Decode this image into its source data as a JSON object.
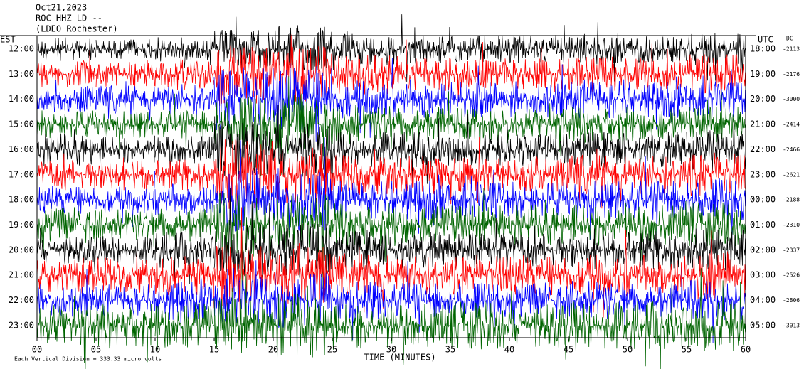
{
  "chart_data": {
    "type": "helicorder",
    "title": "Oct21,2023",
    "subtitle": "ROC HHZ LD --",
    "station": "(LDEO Rochester)",
    "left_axis_label": "EST",
    "right_axis_label": "UTC",
    "dc_label": "DC",
    "xlabel": "TIME (MINUTES)",
    "footer": "Each Vertical Division =  333.33 micro volts",
    "xlim": [
      0,
      60
    ],
    "xticks": [
      {
        "value": 0,
        "label": "00"
      },
      {
        "value": 5,
        "label": "05"
      },
      10,
      15,
      20,
      25,
      30,
      35,
      40,
      45,
      50,
      55,
      60
    ],
    "rows": [
      {
        "est": "12:00",
        "utc": "18:00",
        "dc": -2113,
        "color": "#000000",
        "values": [
          0.3,
          0.25,
          0.3,
          0.5,
          0.6,
          0.4,
          0.4,
          0.35,
          0.35,
          0.4,
          0.35,
          0.4
        ]
      },
      {
        "est": "13:00",
        "utc": "19:00",
        "dc": -2176,
        "color": "#ff0000",
        "values": [
          0.35,
          0.35,
          0.4,
          0.8,
          0.7,
          0.5,
          0.45,
          0.4,
          0.4,
          0.45,
          0.4,
          0.5
        ]
      },
      {
        "est": "14:00",
        "utc": "20:00",
        "dc": -3000,
        "color": "#0000ff",
        "values": [
          0.35,
          0.35,
          0.4,
          0.8,
          0.9,
          0.5,
          0.5,
          0.45,
          0.45,
          0.5,
          0.45,
          0.45
        ]
      },
      {
        "est": "15:00",
        "utc": "21:00",
        "dc": -2414,
        "color": "#006400",
        "values": [
          0.35,
          0.35,
          0.35,
          0.7,
          0.8,
          0.5,
          0.45,
          0.4,
          0.4,
          0.45,
          0.4,
          0.45
        ]
      },
      {
        "est": "16:00",
        "utc": "22:00",
        "dc": -2466,
        "color": "#000000",
        "values": [
          0.4,
          0.35,
          0.35,
          0.7,
          0.7,
          0.45,
          0.45,
          0.4,
          0.4,
          0.45,
          0.45,
          0.5
        ]
      },
      {
        "est": "17:00",
        "utc": "23:00",
        "dc": -2621,
        "color": "#ff0000",
        "values": [
          0.4,
          0.4,
          0.4,
          0.9,
          0.8,
          0.5,
          0.5,
          0.45,
          0.45,
          0.5,
          0.5,
          0.55
        ]
      },
      {
        "est": "18:00",
        "utc": "00:00",
        "dc": -2188,
        "color": "#0000ff",
        "values": [
          0.35,
          0.35,
          0.4,
          0.8,
          0.8,
          0.5,
          0.5,
          0.45,
          0.45,
          0.5,
          0.5,
          0.55
        ]
      },
      {
        "est": "19:00",
        "utc": "01:00",
        "dc": -2310,
        "color": "#006400",
        "values": [
          0.45,
          0.4,
          0.45,
          0.8,
          0.8,
          0.55,
          0.5,
          0.5,
          0.5,
          0.55,
          0.5,
          0.55
        ]
      },
      {
        "est": "20:00",
        "utc": "02:00",
        "dc": -2337,
        "color": "#000000",
        "values": [
          0.35,
          0.35,
          0.45,
          0.7,
          0.7,
          0.5,
          0.45,
          0.45,
          0.45,
          0.5,
          0.5,
          0.55
        ]
      },
      {
        "est": "21:00",
        "utc": "03:00",
        "dc": -2526,
        "color": "#ff0000",
        "values": [
          0.45,
          0.45,
          0.5,
          0.8,
          0.8,
          0.55,
          0.5,
          0.5,
          0.5,
          0.55,
          0.5,
          0.6
        ]
      },
      {
        "est": "22:00",
        "utc": "04:00",
        "dc": -2806,
        "color": "#0000ff",
        "values": [
          0.4,
          0.4,
          0.5,
          0.6,
          0.7,
          0.5,
          0.45,
          0.45,
          0.45,
          0.5,
          0.45,
          0.5
        ]
      },
      {
        "est": "23:00",
        "utc": "05:00",
        "dc": -3013,
        "color": "#006400",
        "values": [
          0.55,
          0.55,
          0.6,
          0.7,
          0.8,
          0.6,
          0.55,
          0.6,
          0.55,
          0.6,
          0.6,
          0.65
        ]
      }
    ]
  }
}
